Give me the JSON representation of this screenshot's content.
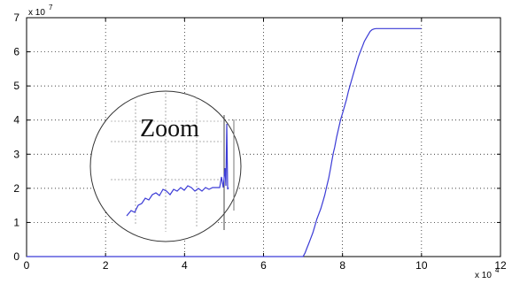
{
  "chart_data": {
    "type": "line",
    "x_multiplier": "x 10",
    "x_multiplier_exp": "4",
    "y_multiplier": "x 10",
    "y_multiplier_exp": "7",
    "xlim": [
      0,
      120000
    ],
    "ylim": [
      0,
      70000000
    ],
    "x_ticks": [
      "0",
      "2",
      "4",
      "6",
      "8",
      "10",
      "12"
    ],
    "y_ticks": [
      "0",
      "1",
      "2",
      "3",
      "4",
      "5",
      "6",
      "7"
    ],
    "grid": true,
    "line_color": "#3b3bd6",
    "series": [
      {
        "x": [
          0,
          68000,
          70000,
          70500,
          71000,
          71500,
          72000,
          72500,
          73000,
          73500,
          74000,
          74500,
          75000,
          75500,
          76000,
          76500,
          77000,
          77300,
          77700,
          78000,
          78500,
          79000,
          79500,
          80000,
          80500,
          81000,
          81500,
          82000,
          82500,
          83000,
          83500,
          84000,
          84500,
          85000,
          85500,
          86000,
          86500,
          87000,
          87500,
          88000,
          88500,
          89000,
          95000,
          100000
        ],
        "y": [
          0,
          0,
          0,
          1000000,
          2500000,
          4000000,
          5500000,
          7000000,
          9000000,
          11000000,
          12500000,
          14000000,
          16000000,
          18000000,
          20500000,
          23000000,
          26000000,
          28000000,
          30500000,
          32000000,
          35000000,
          37500000,
          40000000,
          42000000,
          44000000,
          46000000,
          48500000,
          50500000,
          52500000,
          54500000,
          56500000,
          58500000,
          60000000,
          61500000,
          63000000,
          64000000,
          65000000,
          66000000,
          66500000,
          66700000,
          66800000,
          66800000,
          66800000,
          66800000
        ]
      }
    ],
    "inset": {
      "label": "Zoom"
    }
  }
}
